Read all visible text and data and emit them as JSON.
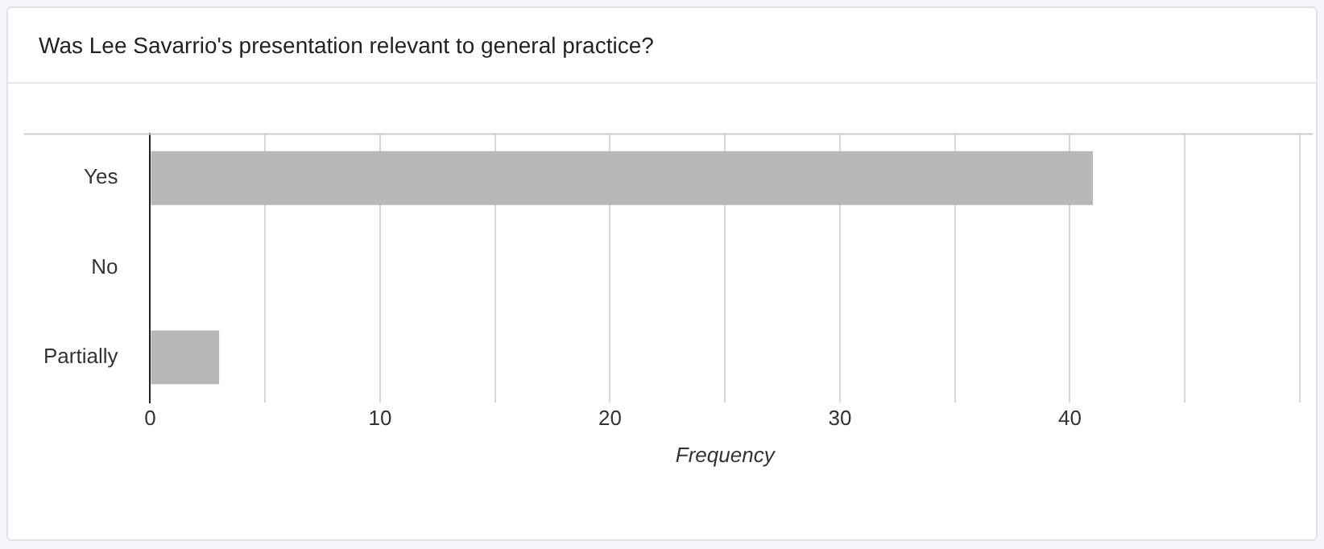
{
  "chart_data": {
    "type": "bar",
    "title": "Was Lee Savarrio's presentation relevant to general practice?",
    "orientation": "horizontal",
    "categories": [
      "Yes",
      "No",
      "Partially"
    ],
    "values": [
      41,
      0,
      3
    ],
    "color": "#b8b8b8",
    "xlabel": "Frequency",
    "xlim": [
      0,
      50
    ],
    "xticks": [
      0,
      {
        "value": 5,
        "label": null
      },
      10,
      {
        "value": 15,
        "label": null
      },
      20,
      {
        "value": 25,
        "label": null
      },
      30,
      {
        "value": 35,
        "label": null
      },
      40,
      {
        "value": 45,
        "label": null
      },
      {
        "value": 50,
        "label": null
      }
    ],
    "grid": "x",
    "legend": false
  }
}
